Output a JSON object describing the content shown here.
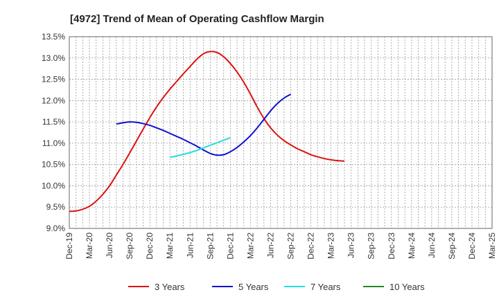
{
  "chart_data": {
    "type": "line",
    "title": "[4972]  Trend of Mean of Operating Cashflow Margin",
    "x_tick_labels": [
      "Dec-19",
      "Mar-20",
      "Jun-20",
      "Sep-20",
      "Dec-20",
      "Mar-21",
      "Jun-21",
      "Sep-21",
      "Dec-21",
      "Mar-22",
      "Jun-22",
      "Sep-22",
      "Dec-22",
      "Mar-23",
      "Jun-23",
      "Sep-23",
      "Dec-23",
      "Mar-24",
      "Jun-24",
      "Sep-24",
      "Dec-24",
      "Mar-25"
    ],
    "y_tick_labels": [
      "9.0%",
      "9.5%",
      "10.0%",
      "10.5%",
      "11.0%",
      "11.5%",
      "12.0%",
      "12.5%",
      "13.0%",
      "13.5%"
    ],
    "ylim": [
      9.0,
      13.5
    ],
    "y_step": 0.5,
    "grid": true,
    "legend_position": "bottom",
    "series": [
      {
        "name": "3 Years",
        "color": "#dd1111",
        "start_index": 0,
        "values": [
          9.4,
          9.41,
          9.45,
          9.52,
          9.64,
          9.8,
          10.0,
          10.25,
          10.5,
          10.77,
          11.05,
          11.33,
          11.6,
          11.85,
          12.07,
          12.27,
          12.45,
          12.63,
          12.8,
          12.97,
          13.1,
          13.15,
          13.13,
          13.03,
          12.87,
          12.67,
          12.43,
          12.15,
          11.85,
          11.58,
          11.36,
          11.19,
          11.06,
          10.96,
          10.87,
          10.8,
          10.73,
          10.68,
          10.64,
          10.61,
          10.59,
          10.58
        ]
      },
      {
        "name": "5 Years",
        "color": "#1111cc",
        "start_index": 7,
        "values": [
          11.45,
          11.48,
          11.5,
          11.49,
          11.46,
          11.42,
          11.36,
          11.3,
          11.23,
          11.16,
          11.09,
          11.01,
          10.93,
          10.84,
          10.76,
          10.72,
          10.73,
          10.8,
          10.9,
          11.03,
          11.18,
          11.36,
          11.56,
          11.76,
          11.93,
          12.06,
          12.15
        ]
      },
      {
        "name": "7 Years",
        "color": "#22dddd",
        "start_index": 15,
        "values": [
          10.67,
          10.7,
          10.74,
          10.78,
          10.83,
          10.89,
          10.95,
          11.01,
          11.07,
          11.13
        ]
      },
      {
        "name": "10 Years",
        "color": "#228822",
        "start_index": 0,
        "values": []
      }
    ]
  }
}
